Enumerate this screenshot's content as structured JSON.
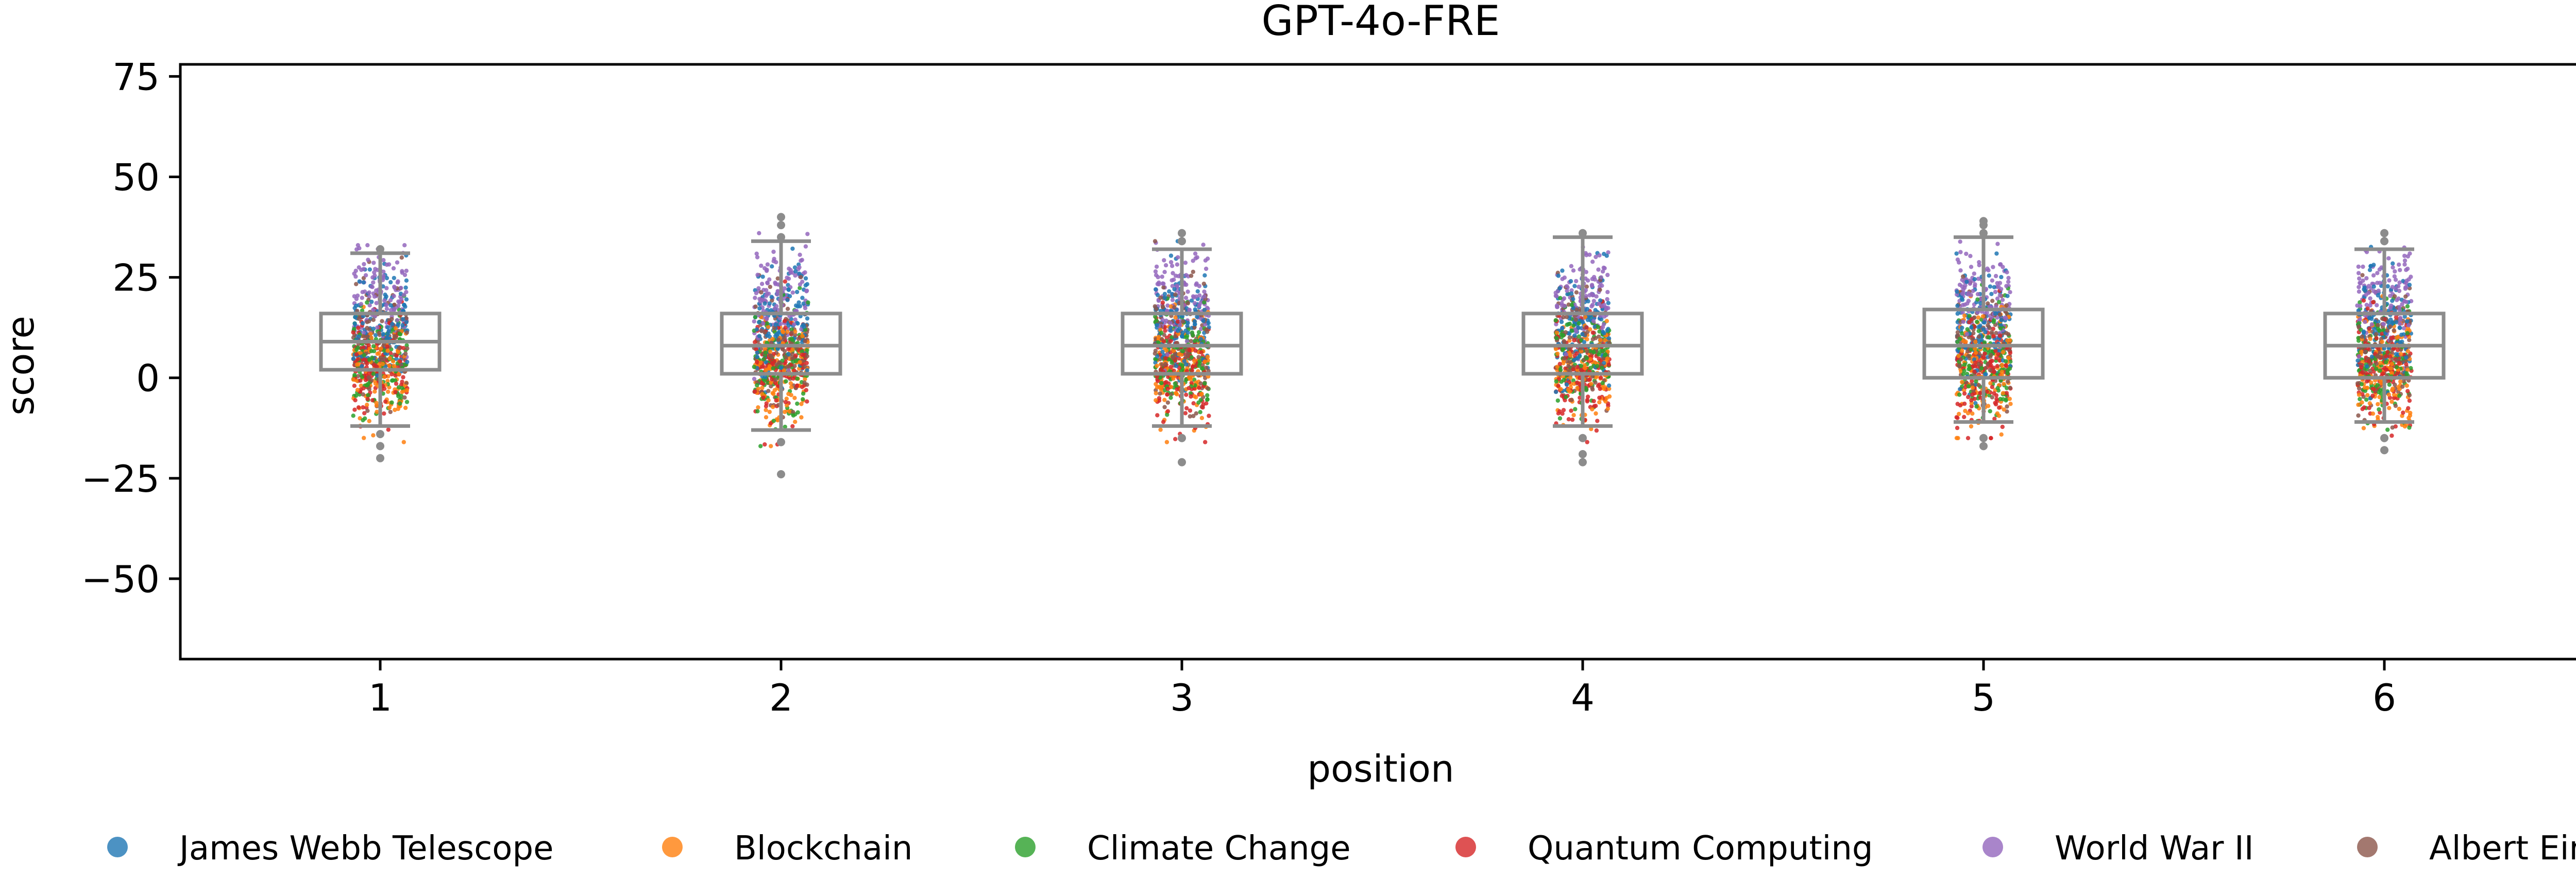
{
  "chart_data": {
    "type": "scatter",
    "title": "GPT-4o-FRE",
    "xlabel": "position",
    "ylabel": "score",
    "categories": [
      "1",
      "2",
      "3",
      "4",
      "5",
      "6"
    ],
    "ylim": [
      -70,
      78
    ],
    "yticks": [
      75,
      50,
      25,
      0,
      -25,
      -50
    ],
    "ytick_labels": [
      "75",
      "50",
      "25",
      "0",
      "−25",
      "−50"
    ],
    "grid": false,
    "legend_position": "bottom",
    "series": [
      {
        "name": "James Webb Telescope",
        "color": "#1f77b4",
        "center_mean": 13,
        "spread_sd": 7
      },
      {
        "name": "Blockchain",
        "color": "#ff7f0e",
        "center_mean": 2,
        "spread_sd": 7
      },
      {
        "name": "Climate Change",
        "color": "#2ca02c",
        "center_mean": 4,
        "spread_sd": 7
      },
      {
        "name": "Quantum Computing",
        "color": "#d62728",
        "center_mean": 2,
        "spread_sd": 7
      },
      {
        "name": "World War II",
        "color": "#9467bd",
        "center_mean": 20,
        "spread_sd": 6
      },
      {
        "name": "Albert Einstein",
        "color": "#8c564b",
        "center_mean": 8,
        "spread_sd": 7
      }
    ],
    "boxplots": [
      {
        "position": "1",
        "q1": 2,
        "median": 9,
        "q3": 16,
        "whisker_low": -12,
        "whisker_high": 31,
        "outliers": [
          -14,
          -17,
          -20,
          32
        ]
      },
      {
        "position": "2",
        "q1": 1,
        "median": 8,
        "q3": 16,
        "whisker_low": -13,
        "whisker_high": 34,
        "outliers": [
          -16,
          -24,
          35,
          38,
          40
        ]
      },
      {
        "position": "3",
        "q1": 1,
        "median": 8,
        "q3": 16,
        "whisker_low": -12,
        "whisker_high": 32,
        "outliers": [
          -15,
          -21,
          34,
          36
        ]
      },
      {
        "position": "4",
        "q1": 1,
        "median": 8,
        "q3": 16,
        "whisker_low": -12,
        "whisker_high": 35,
        "outliers": [
          -15,
          -19,
          -21,
          36
        ]
      },
      {
        "position": "5",
        "q1": 0,
        "median": 8,
        "q3": 17,
        "whisker_low": -11,
        "whisker_high": 35,
        "outliers": [
          -15,
          -17,
          36,
          38,
          39
        ]
      },
      {
        "position": "6",
        "q1": 0,
        "median": 8,
        "q3": 16,
        "whisker_low": -11,
        "whisker_high": 32,
        "outliers": [
          -15,
          -18,
          34,
          36
        ]
      }
    ],
    "points_per_series_per_position": 130
  }
}
